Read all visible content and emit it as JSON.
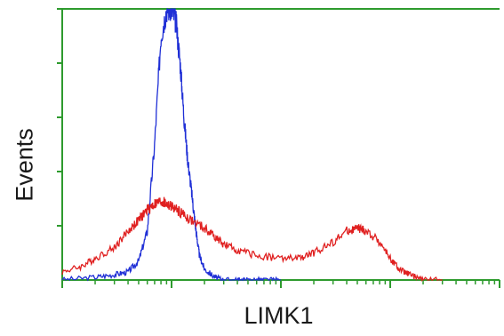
{
  "chart_data": {
    "type": "line",
    "title": "",
    "xlabel": "LIMK1",
    "ylabel": "Events",
    "x_scale": "log",
    "xlim": [
      1,
      10000
    ],
    "ylim": [
      0,
      100
    ],
    "grid": false,
    "legend": "none",
    "axis_color": "#2e9b2e",
    "series": [
      {
        "color": "#1f2fd6",
        "x": [
          1,
          2,
          3,
          4,
          5,
          6,
          7,
          8,
          9,
          10,
          11,
          12,
          13,
          14,
          15,
          16,
          17,
          18,
          20,
          25,
          30,
          40,
          50,
          70,
          100
        ],
        "y": [
          0,
          1,
          2,
          3,
          7,
          18,
          50,
          90,
          100,
          100,
          95,
          80,
          60,
          45,
          35,
          25,
          16,
          9,
          4,
          1,
          0,
          0,
          0,
          0,
          0
        ]
      },
      {
        "color": "#e02020",
        "x": [
          1,
          1.5,
          2,
          3,
          4,
          5,
          6,
          7,
          8,
          9,
          10,
          12,
          15,
          20,
          25,
          30,
          40,
          60,
          100,
          150,
          200,
          300,
          400,
          500,
          600,
          800,
          1000,
          1200,
          1500,
          2000,
          3000
        ],
        "y": [
          3,
          5,
          8,
          12,
          18,
          22,
          26,
          28,
          29,
          28,
          27,
          25,
          22,
          19,
          16,
          13,
          11,
          9,
          8,
          8,
          10,
          14,
          18,
          19,
          18,
          14,
          8,
          4,
          2,
          0,
          0
        ]
      }
    ],
    "y_tick_count": 5,
    "x_decades": [
      1,
      10,
      100,
      1000,
      10000
    ]
  }
}
